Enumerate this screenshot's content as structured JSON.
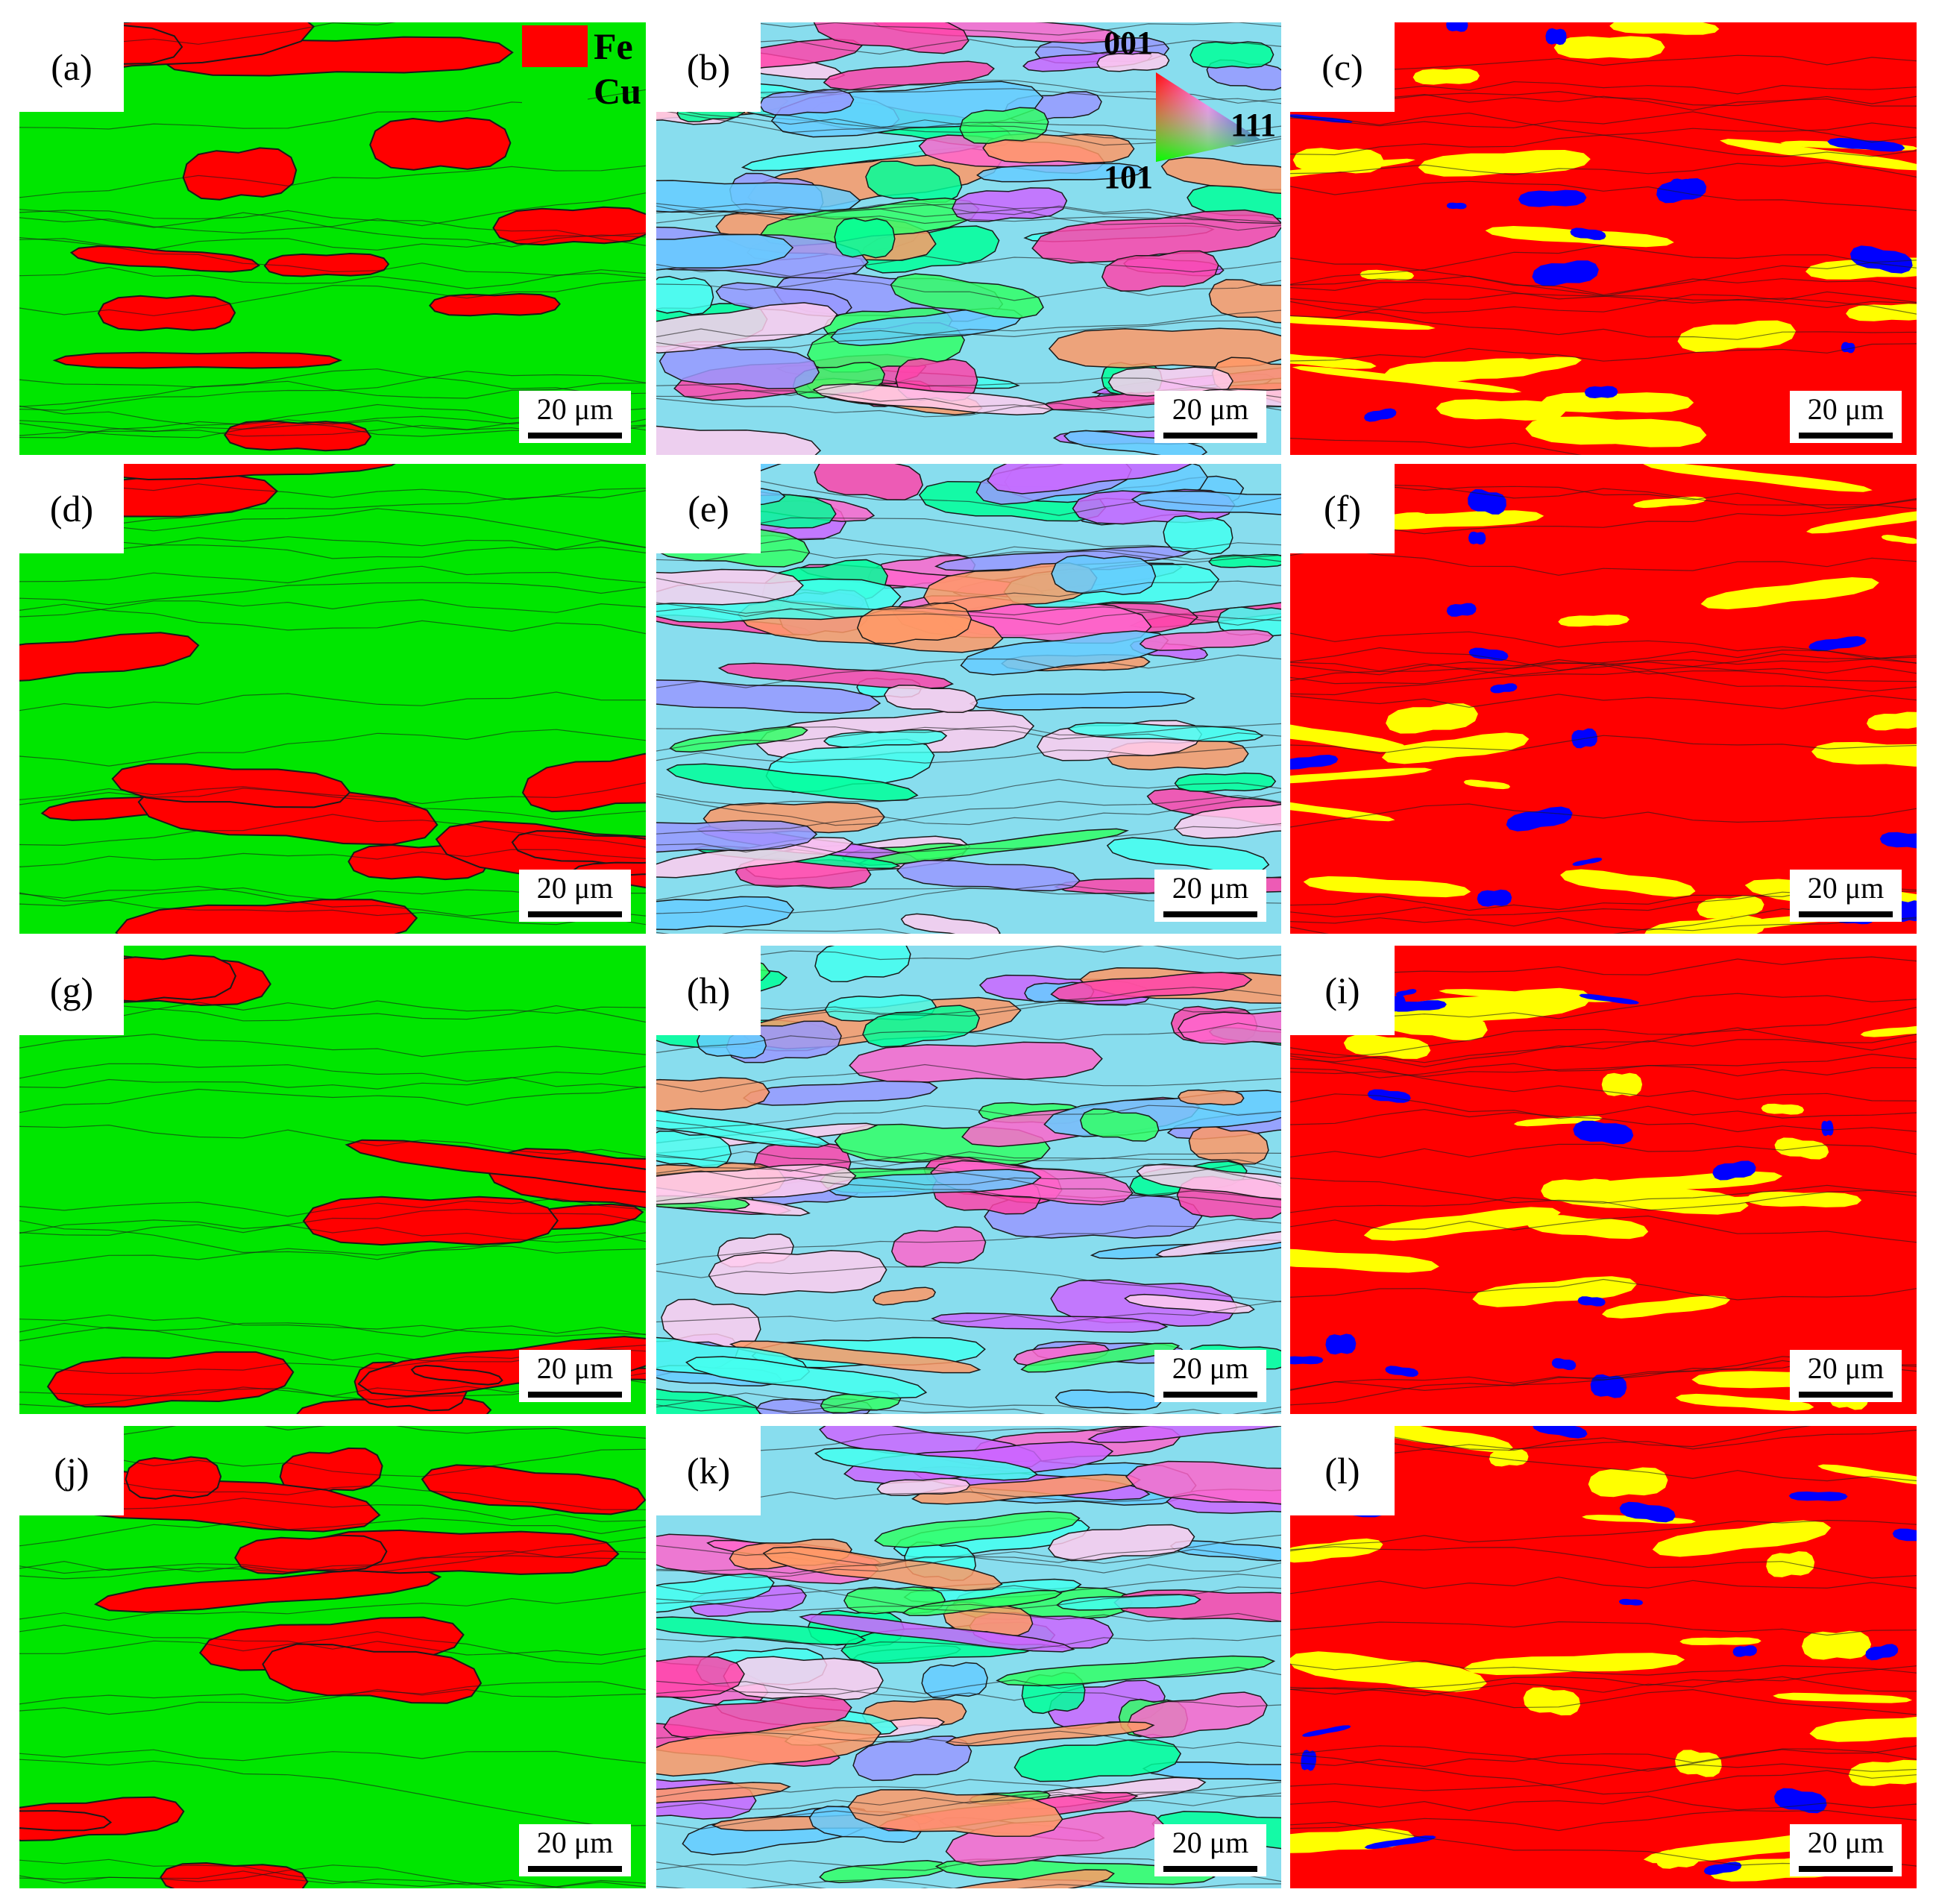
{
  "panel_labels": [
    "(a)",
    "(b)",
    "(c)",
    "(d)",
    "(e)",
    "(f)",
    "(g)",
    "(h)",
    "(i)",
    "(j)",
    "(k)",
    "(l)"
  ],
  "scale_bar_text": "20 μm",
  "phase_legend": [
    {
      "label": "Fe",
      "color": "#ff0000"
    },
    {
      "label": "Cu",
      "color": "#00e600"
    }
  ],
  "ipf_key": {
    "top": "001",
    "right": "111",
    "bottom": "101"
  },
  "colors": {
    "phase_fe": "#ff0000",
    "phase_cu": "#00e600",
    "map_red": "#ff0000",
    "map_yellow": "#ffff00",
    "map_blue": "#0000ff",
    "boundary": "#1a1a1a"
  }
}
